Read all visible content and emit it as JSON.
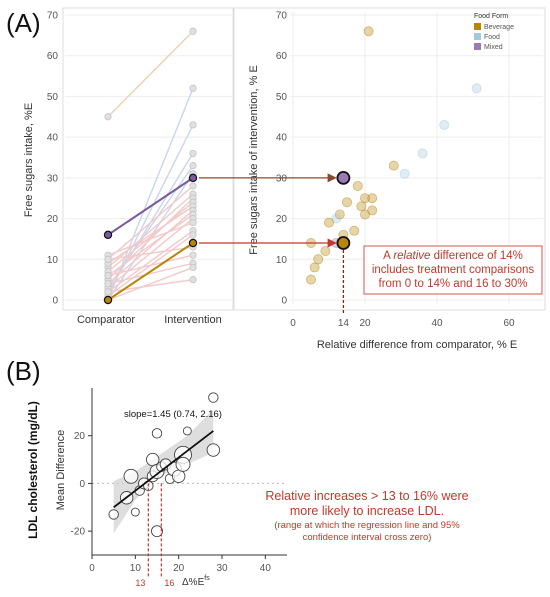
{
  "chart_data": [
    {
      "panel_label": "(A)",
      "type": "line",
      "ylabel": "Free sugars intake, %E",
      "categories": [
        "Comparator",
        "Intervention"
      ],
      "ylim": [
        0,
        70
      ],
      "yticks": [
        0,
        10,
        20,
        30,
        40,
        50,
        60,
        70
      ],
      "series": [
        {
          "values": [
            0,
            14
          ],
          "color": "#b8860b",
          "highlight": true
        },
        {
          "values": [
            16,
            30
          ],
          "color": "#7b5b9e",
          "highlight": true
        },
        {
          "values": [
            45,
            66
          ],
          "color": "#f0d0b0"
        },
        {
          "values": [
            0,
            52
          ],
          "color": "#c9d6ea"
        },
        {
          "values": [
            1,
            43
          ],
          "color": "#c9d6ea"
        },
        {
          "values": [
            2,
            36
          ],
          "color": "#c9d6ea"
        },
        {
          "values": [
            3,
            33
          ],
          "color": "#c9d6ea"
        },
        {
          "values": [
            0,
            31
          ],
          "color": "#c9d6ea"
        },
        {
          "values": [
            10,
            28
          ],
          "color": "#f3c9c9"
        },
        {
          "values": [
            8,
            26
          ],
          "color": "#f3c9c9"
        },
        {
          "values": [
            5,
            25
          ],
          "color": "#f3c9c9"
        },
        {
          "values": [
            7,
            24
          ],
          "color": "#f3c9c9"
        },
        {
          "values": [
            9,
            23
          ],
          "color": "#f3c9c9"
        },
        {
          "values": [
            4,
            22
          ],
          "color": "#f3c9c9"
        },
        {
          "values": [
            6,
            21
          ],
          "color": "#f3c9c9"
        },
        {
          "values": [
            3,
            20
          ],
          "color": "#f3c9c9"
        },
        {
          "values": [
            11,
            19
          ],
          "color": "#f3c9c9"
        },
        {
          "values": [
            2,
            17
          ],
          "color": "#f3c9c9"
        },
        {
          "values": [
            1,
            16
          ],
          "color": "#f3c9c9"
        },
        {
          "values": [
            10,
            13
          ],
          "color": "#f3c9c9"
        },
        {
          "values": [
            6,
            11
          ],
          "color": "#f3c9c9"
        },
        {
          "values": [
            4,
            9
          ],
          "color": "#f3c9c9"
        },
        {
          "values": [
            0,
            8
          ],
          "color": "#f3c9c9"
        },
        {
          "values": [
            2,
            5
          ],
          "color": "#f3c9c9"
        }
      ]
    },
    {
      "type": "scatter",
      "xlabel": "Relative difference from comparator, % E",
      "ylabel": "Free sugars intake of intervention, % E",
      "xlim": [
        -5,
        70
      ],
      "ylim": [
        0,
        70
      ],
      "xticks": [
        0,
        20,
        40,
        60
      ],
      "yticks": [
        0,
        10,
        20,
        30,
        40,
        50,
        60,
        70
      ],
      "highlight_xtick": "14",
      "legend": {
        "title": "Food Form",
        "position": "top-right",
        "items": [
          {
            "label": "Beverage",
            "color": "#b8860b"
          },
          {
            "label": "Food",
            "color": "#a6c8dc"
          },
          {
            "label": "Mixed",
            "color": "#9b7bb5"
          }
        ]
      },
      "points": [
        {
          "x": 21,
          "y": 66,
          "form": "Beverage"
        },
        {
          "x": 51,
          "y": 52,
          "form": "Food"
        },
        {
          "x": 42,
          "y": 43,
          "form": "Food"
        },
        {
          "x": 36,
          "y": 36,
          "form": "Food"
        },
        {
          "x": 28,
          "y": 33,
          "form": "Beverage"
        },
        {
          "x": 31,
          "y": 31,
          "form": "Food"
        },
        {
          "x": 18,
          "y": 28,
          "form": "Beverage"
        },
        {
          "x": 20,
          "y": 25,
          "form": "Beverage"
        },
        {
          "x": 22,
          "y": 25,
          "form": "Beverage"
        },
        {
          "x": 15,
          "y": 24,
          "form": "Beverage"
        },
        {
          "x": 19,
          "y": 23,
          "form": "Beverage"
        },
        {
          "x": 22,
          "y": 22,
          "form": "Beverage"
        },
        {
          "x": 20,
          "y": 21,
          "form": "Beverage"
        },
        {
          "x": 13,
          "y": 21,
          "form": "Beverage"
        },
        {
          "x": 12,
          "y": 20,
          "form": "Food"
        },
        {
          "x": 10,
          "y": 19,
          "form": "Beverage"
        },
        {
          "x": 17,
          "y": 17,
          "form": "Beverage"
        },
        {
          "x": 14,
          "y": 16,
          "form": "Beverage"
        },
        {
          "x": 12,
          "y": 14,
          "form": "Mixed"
        },
        {
          "x": 5,
          "y": 14,
          "form": "Beverage"
        },
        {
          "x": 9,
          "y": 12,
          "form": "Beverage"
        },
        {
          "x": 7,
          "y": 10,
          "form": "Beverage"
        },
        {
          "x": 6,
          "y": 8,
          "form": "Beverage"
        },
        {
          "x": 5,
          "y": 5,
          "form": "Beverage"
        }
      ],
      "highlight_points": [
        {
          "x": 14,
          "y": 30,
          "form": "Mixed"
        },
        {
          "x": 14,
          "y": 14,
          "form": "Beverage"
        }
      ],
      "annotation": {
        "line1_pre": "A ",
        "line1_em": "relative",
        "line1_post": " difference of 14%",
        "line2": "includes treatment comparisons",
        "line3": "from 0 to 14% and 16 to 30%"
      }
    },
    {
      "panel_label": "(B)",
      "type": "scatter",
      "ylabel": "LDL cholesterol (mg/dL)",
      "ylabel2": "Mean Difference",
      "xlabel_base": "Δ%E",
      "xlabel_sup": "fs",
      "xlim": [
        0,
        45
      ],
      "ylim": [
        -30,
        40
      ],
      "xticks": [
        0,
        10,
        20,
        30,
        40
      ],
      "yticks": [
        -20,
        0,
        20
      ],
      "slope_label": "slope=1.45 (0.74, 2.16)",
      "regression": {
        "x": [
          5,
          28
        ],
        "y": [
          -10,
          22
        ]
      },
      "ci_band": {
        "x": [
          5,
          10,
          14,
          18,
          22,
          28
        ],
        "lower": [
          -21,
          -7,
          1,
          5,
          8,
          13
        ],
        "upper": [
          1,
          5,
          10,
          15,
          20,
          31
        ]
      },
      "threshold_ticks": [
        "13",
        "16"
      ],
      "points": [
        {
          "x": 5,
          "y": -13,
          "size": 3
        },
        {
          "x": 8,
          "y": -6,
          "size": 5
        },
        {
          "x": 9,
          "y": 3,
          "size": 6
        },
        {
          "x": 10,
          "y": -12,
          "size": 2
        },
        {
          "x": 11,
          "y": -3,
          "size": 3
        },
        {
          "x": 12,
          "y": 0,
          "size": 4
        },
        {
          "x": 13,
          "y": -1,
          "size": 3
        },
        {
          "x": 14,
          "y": 3,
          "size": 4
        },
        {
          "x": 14,
          "y": 10,
          "size": 5
        },
        {
          "x": 15,
          "y": 5,
          "size": 6
        },
        {
          "x": 15,
          "y": 21,
          "size": 3
        },
        {
          "x": 15,
          "y": -20,
          "size": 4
        },
        {
          "x": 16,
          "y": 7,
          "size": 3
        },
        {
          "x": 17,
          "y": 8,
          "size": 4
        },
        {
          "x": 18,
          "y": 2,
          "size": 3
        },
        {
          "x": 19,
          "y": 6,
          "size": 6
        },
        {
          "x": 20,
          "y": 3,
          "size": 5
        },
        {
          "x": 21,
          "y": 12,
          "size": 8
        },
        {
          "x": 21,
          "y": 8,
          "size": 6
        },
        {
          "x": 22,
          "y": 22,
          "size": 2
        },
        {
          "x": 28,
          "y": 14,
          "size": 5
        },
        {
          "x": 28,
          "y": 36,
          "size": 3
        }
      ],
      "annotation": {
        "line1": "Relative increases > 13 to 16% were",
        "line2": "more likely to increase LDL.",
        "line3": "(range at which the regression line and 95%",
        "line4": "confidence interval cross zero)"
      }
    }
  ]
}
